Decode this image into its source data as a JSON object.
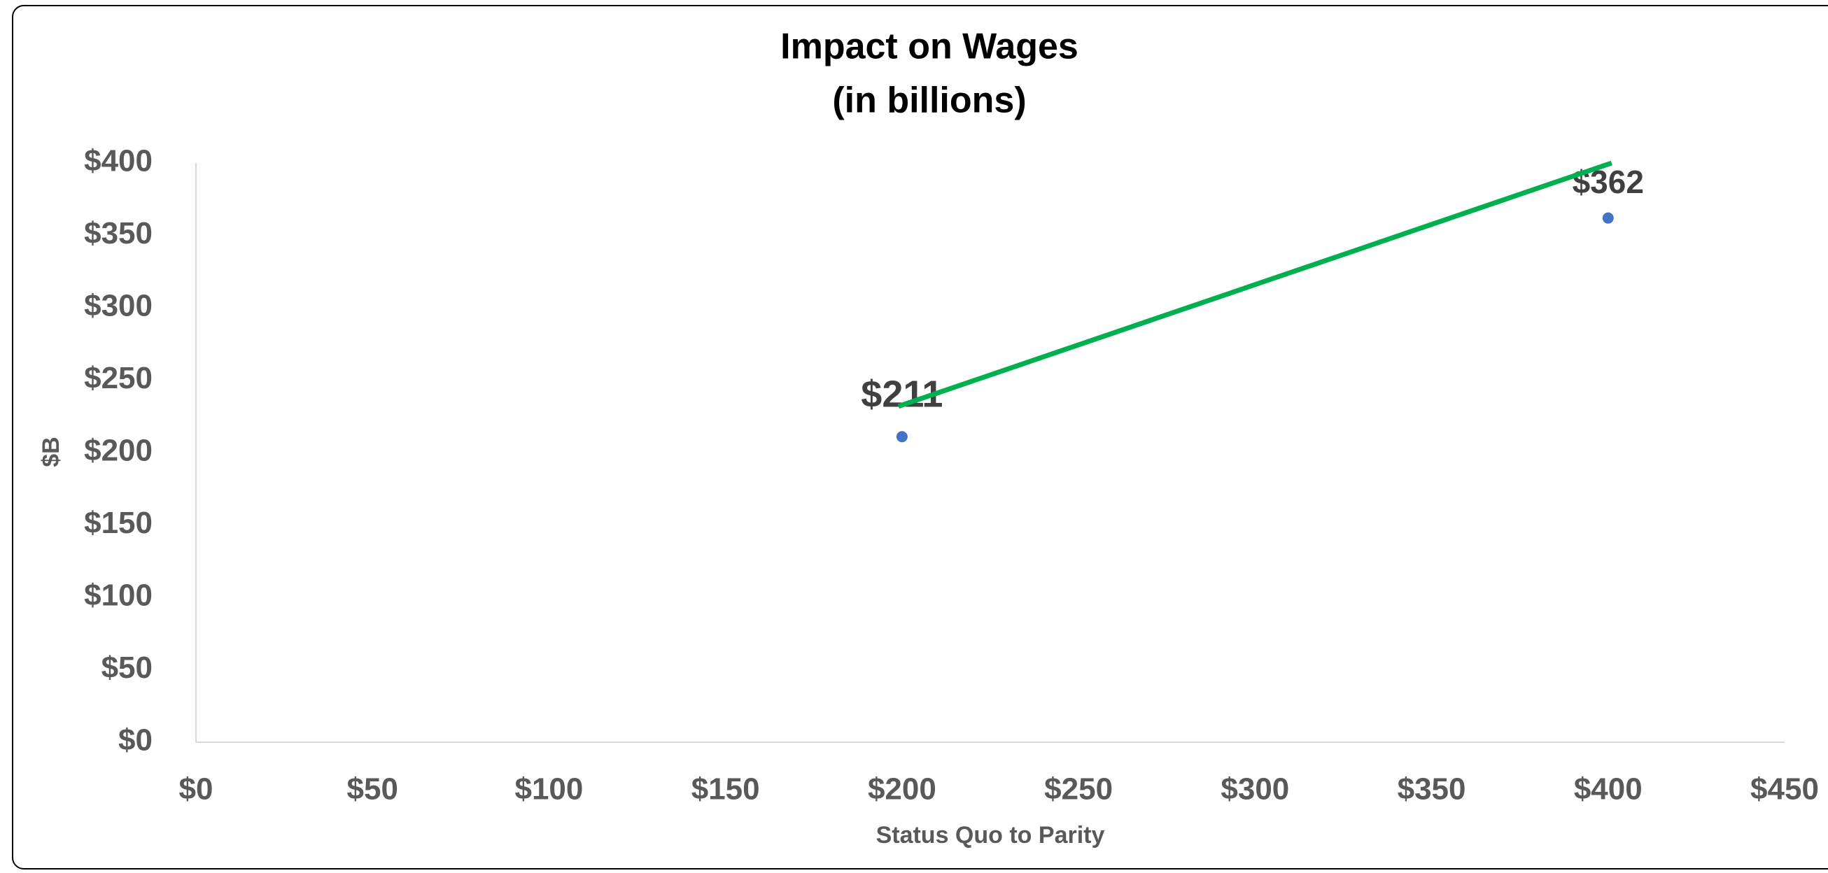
{
  "chart_data": {
    "type": "scatter",
    "title": [
      "Impact on Wages",
      "(in billions)"
    ],
    "x_label": "Status Quo to Parity",
    "y_label": "$B",
    "series": [
      {
        "color": "#4472c4",
        "x": [
          200,
          400
        ],
        "values": [
          211,
          362
        ],
        "value_labels": [
          "$211",
          "$362"
        ]
      },
      {
        "color": "#00b050",
        "kind": "line",
        "x": [
          199,
          401
        ],
        "values": [
          232,
          400
        ]
      }
    ],
    "xlim": [
      0,
      450
    ],
    "xticks": [
      {
        "value": 0,
        "label": "$0"
      },
      {
        "value": 50,
        "label": "$50"
      },
      {
        "value": 100,
        "label": "$100"
      },
      {
        "value": 150,
        "label": "$150"
      },
      {
        "value": 200,
        "label": "$200"
      },
      {
        "value": 250,
        "label": "$250"
      },
      {
        "value": 300,
        "label": "$300"
      },
      {
        "value": 350,
        "label": "$350"
      },
      {
        "value": 400,
        "label": "$400"
      },
      {
        "value": 450,
        "label": "$450"
      }
    ],
    "ylim": [
      0,
      400
    ],
    "yticks": [
      {
        "value": 0,
        "label": "$0"
      },
      {
        "value": 50,
        "label": "$50"
      },
      {
        "value": 100,
        "label": "$100"
      },
      {
        "value": 150,
        "label": "$150"
      },
      {
        "value": 200,
        "label": "$200"
      },
      {
        "value": 250,
        "label": "$250"
      },
      {
        "value": 300,
        "label": "$300"
      },
      {
        "value": 350,
        "label": "$350"
      },
      {
        "value": 400,
        "label": "$400"
      }
    ],
    "grid": false
  }
}
